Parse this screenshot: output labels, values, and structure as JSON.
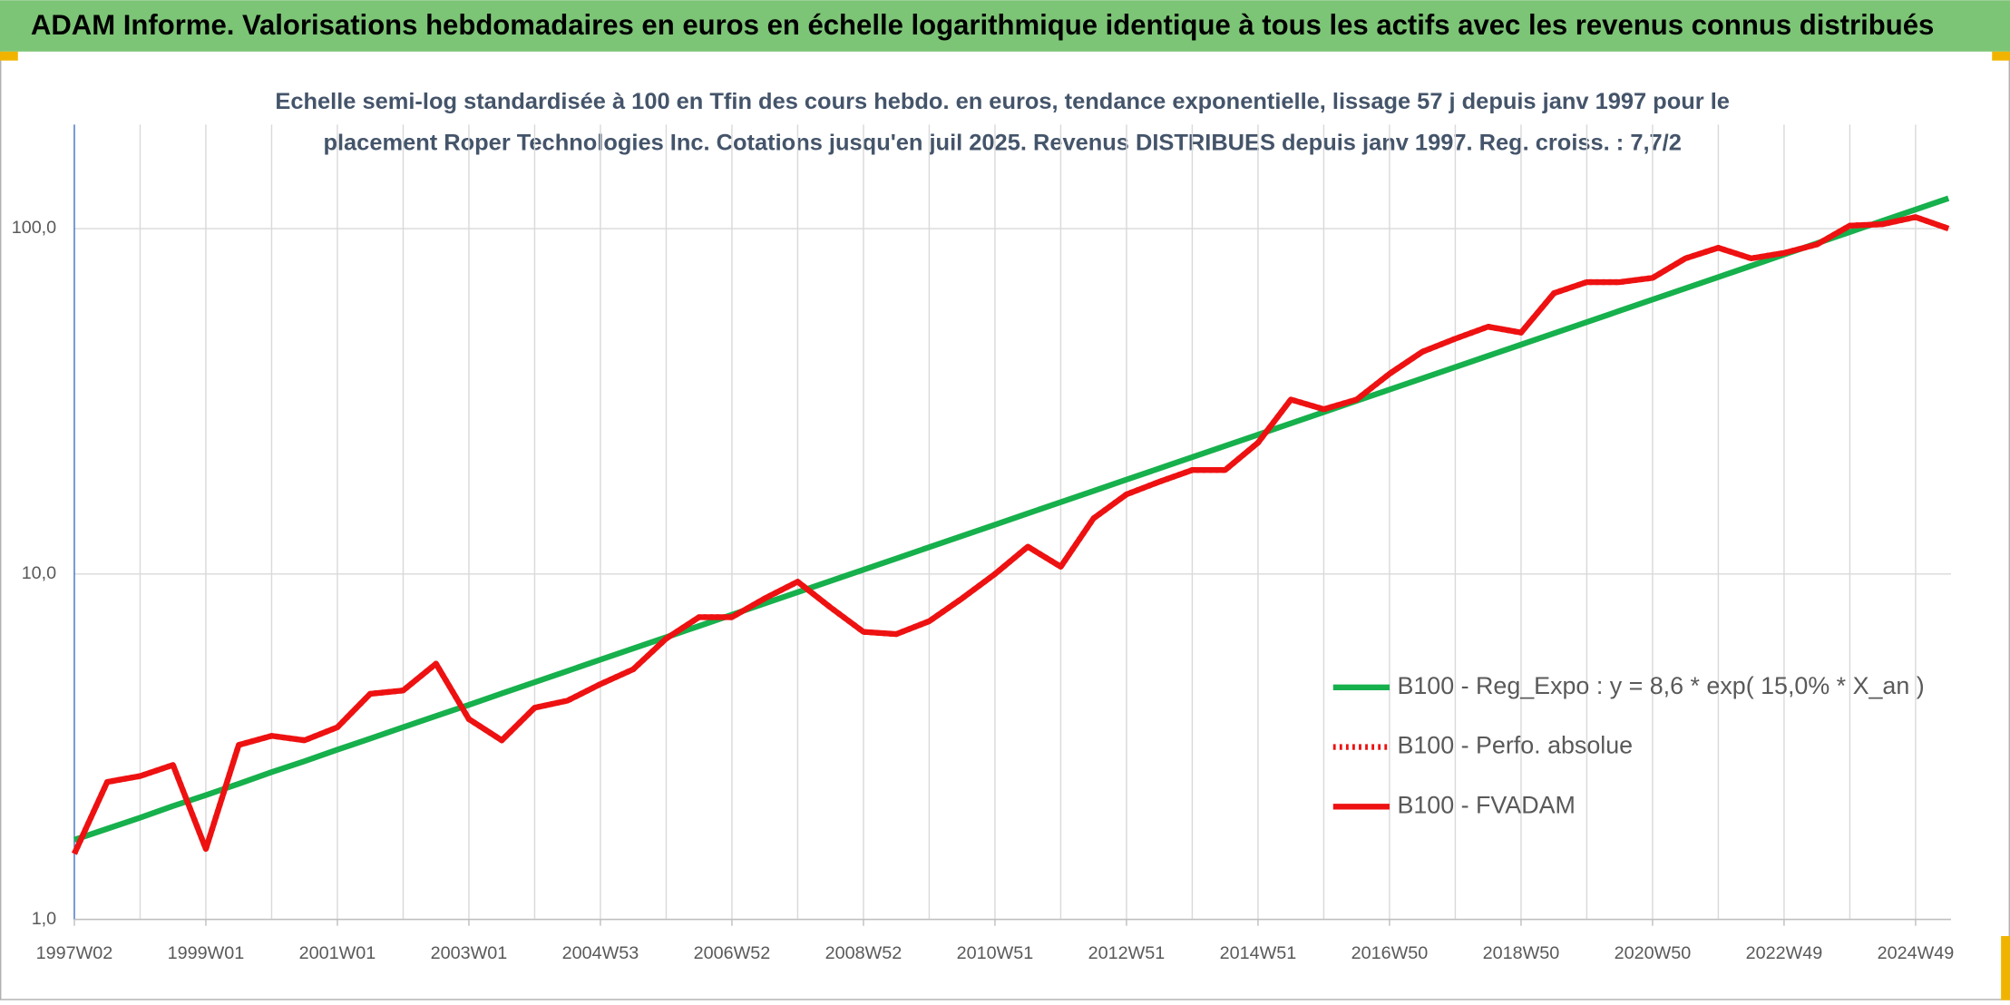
{
  "header": {
    "title": "ADAM Informe. Valorisations hebdomadaires en euros en échelle logarithmique identique à tous les actifs avec les revenus connus distribués"
  },
  "chart_data": {
    "type": "line",
    "title": [
      "Echelle semi-log standardisée à 100 en Tfin des cours hebdo. en euros, tendance exponentielle, lissage 57 j depuis janv 1997 pour le",
      "placement Roper Technologies Inc. Cotations jusqu'en juil 2025. Revenus DISTRIBUES depuis janv 1997. Reg. croiss. : 7,7/2"
    ],
    "log_scale": true,
    "grid": true,
    "legend_position": "right",
    "ylim": [
      1,
      200
    ],
    "yticks": [
      {
        "value": 1,
        "label": "1,0"
      },
      {
        "value": 10,
        "label": "10,0"
      },
      {
        "value": 100,
        "label": "100,0"
      }
    ],
    "categories": [
      "1997W02",
      null,
      null,
      null,
      "1999W01",
      null,
      null,
      null,
      "2001W01",
      null,
      null,
      null,
      "2003W01",
      null,
      null,
      null,
      "2004W53",
      null,
      null,
      null,
      "2006W52",
      null,
      null,
      null,
      "2008W52",
      null,
      null,
      null,
      "2010W51",
      null,
      null,
      null,
      "2012W51",
      null,
      null,
      null,
      "2014W51",
      null,
      null,
      null,
      "2016W50",
      null,
      null,
      null,
      "2018W50",
      null,
      null,
      null,
      "2020W50",
      null,
      null,
      null,
      "2022W49",
      null,
      null,
      null,
      "2024W49",
      null
    ],
    "series": [
      {
        "name": "B100 - Reg_Expo : y = 8,6 * exp( 15,0% *  X_an )",
        "color": "#16b04c",
        "dash": "solid",
        "values": [
          1.7,
          1.83,
          1.97,
          2.13,
          2.29,
          2.47,
          2.67,
          2.87,
          3.1,
          3.34,
          3.6,
          3.88,
          4.18,
          4.51,
          4.86,
          5.24,
          5.65,
          6.09,
          6.56,
          7.07,
          7.62,
          8.22,
          8.86,
          9.55,
          10.29,
          11.09,
          11.96,
          12.89,
          13.89,
          14.98,
          16.14,
          17.4,
          18.76,
          20.22,
          21.8,
          23.49,
          25.32,
          27.3,
          29.42,
          31.72,
          34.19,
          36.85,
          39.72,
          42.82,
          46.15,
          49.75,
          53.63,
          57.81,
          62.31,
          67.17,
          72.4,
          78.04,
          84.12,
          90.68,
          97.74,
          105.4,
          113.6,
          122.4
        ]
      },
      {
        "name": "B100 - Perfo. absolue",
        "color": "#ee1111",
        "dash": "dotted",
        "values": [
          1.55,
          2.5,
          2.6,
          2.8,
          1.6,
          3.2,
          3.4,
          3.3,
          3.6,
          4.5,
          4.6,
          5.5,
          3.8,
          3.3,
          4.1,
          4.3,
          4.8,
          5.3,
          6.5,
          7.5,
          7.5,
          8.5,
          9.5,
          8.0,
          6.8,
          6.7,
          7.3,
          8.5,
          10.0,
          12.0,
          10.5,
          14.5,
          17.0,
          18.5,
          20.0,
          20.0,
          24.0,
          32.0,
          30.0,
          32.0,
          38.0,
          44.0,
          48.0,
          52.0,
          50.0,
          65.0,
          70.0,
          70.0,
          72.0,
          82.0,
          88.0,
          82.0,
          85.0,
          90.0,
          102.0,
          103.0,
          108.0,
          100.0
        ]
      },
      {
        "name": "B100 - FVADAM",
        "color": "#ee1111",
        "dash": "solid",
        "values": [
          1.55,
          2.5,
          2.6,
          2.8,
          1.6,
          3.2,
          3.4,
          3.3,
          3.6,
          4.5,
          4.6,
          5.5,
          3.8,
          3.3,
          4.1,
          4.3,
          4.8,
          5.3,
          6.5,
          7.5,
          7.5,
          8.5,
          9.5,
          8.0,
          6.8,
          6.7,
          7.3,
          8.5,
          10.0,
          12.0,
          10.5,
          14.5,
          17.0,
          18.5,
          20.0,
          20.0,
          24.0,
          32.0,
          30.0,
          32.0,
          38.0,
          44.0,
          48.0,
          52.0,
          50.0,
          65.0,
          70.0,
          70.0,
          72.0,
          82.0,
          88.0,
          82.0,
          85.0,
          90.0,
          102.0,
          103.0,
          108.0,
          100.0
        ]
      }
    ]
  }
}
